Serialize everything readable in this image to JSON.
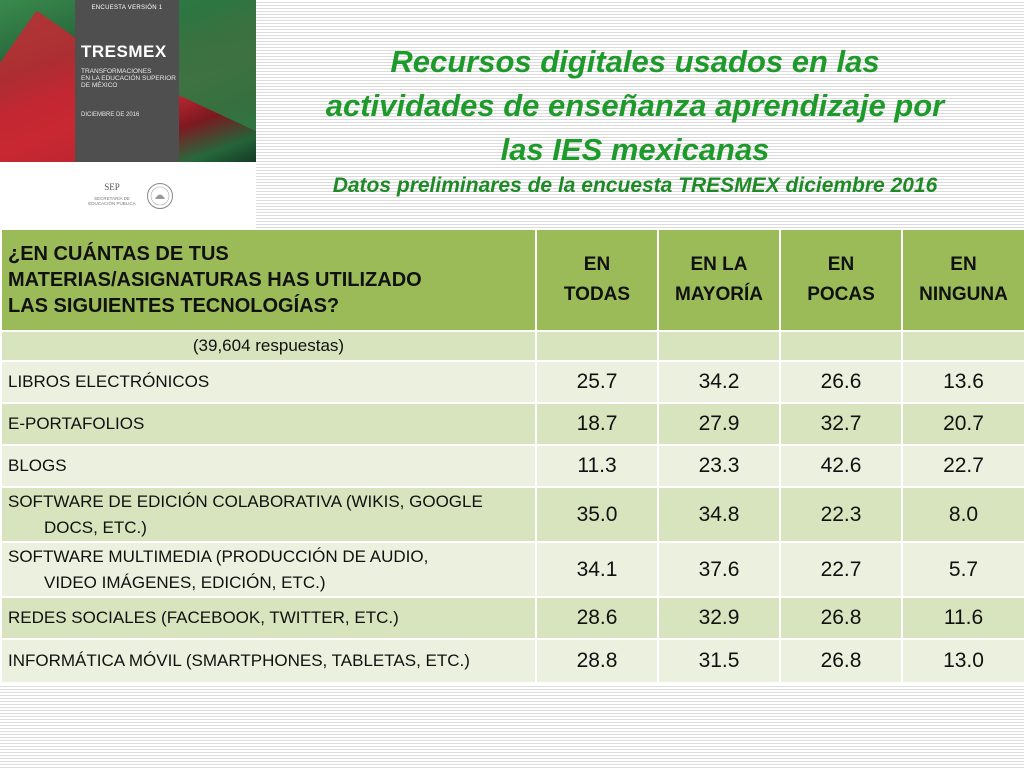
{
  "cover": {
    "version": "ENCUESTA VERSIÓN 1",
    "logo": "TRESMEX",
    "subtitle_lines": [
      "TRANSFORMACIONES",
      "EN LA EDUCACIÓN SUPERIOR",
      "DE MÉXICO"
    ],
    "date": "DICIEMBRE DE 2016",
    "sep_logo": "SEP",
    "sep_small_lines": [
      "SECRETARÍA DE",
      "EDUCACIÓN PÚBLICA"
    ],
    "seal_icon": "mexican-seal-icon"
  },
  "title_lines": [
    "Recursos digitales usados en las",
    "actividades de enseñanza aprendizaje por",
    "las IES mexicanas"
  ],
  "subtitle": "Datos preliminares de la encuesta TRESMEX diciembre 2016",
  "colors": {
    "title": "#1d9a2a",
    "header_bg": "#9bbb59",
    "row_light": "#ebf1de",
    "row_mid": "#d7e4bd"
  },
  "table": {
    "question_lines": [
      "¿EN CUÁNTAS DE TUS",
      "MATERIAS/ASIGNATURAS HAS UTILIZADO",
      "LAS SIGUIENTES TECNOLOGÍAS?"
    ],
    "columns": [
      {
        "lines": [
          "EN",
          "TODAS"
        ]
      },
      {
        "lines": [
          "EN LA",
          "MAYORÍA"
        ]
      },
      {
        "lines": [
          "EN",
          "POCAS"
        ]
      },
      {
        "lines": [
          "EN",
          "NINGUNA"
        ]
      }
    ],
    "sample_note": "(39,604 respuestas)",
    "rows": [
      {
        "lines": [
          "LIBROS ELECTRÓNICOS"
        ],
        "values": [
          "25.7",
          "34.2",
          "26.6",
          "13.6"
        ]
      },
      {
        "lines": [
          "E-PORTAFOLIOS"
        ],
        "values": [
          "18.7",
          "27.9",
          "32.7",
          "20.7"
        ]
      },
      {
        "lines": [
          "BLOGS"
        ],
        "values": [
          "11.3",
          "23.3",
          "42.6",
          "22.7"
        ]
      },
      {
        "lines": [
          "SOFTWARE DE EDICIÓN COLABORATIVA (WIKIS, GOOGLE",
          "DOCS, ETC.)"
        ],
        "values": [
          "35.0",
          "34.8",
          "22.3",
          "8.0"
        ]
      },
      {
        "lines": [
          "SOFTWARE MULTIMEDIA (PRODUCCIÓN DE AUDIO,",
          "VIDEO IMÁGENES, EDICIÓN, ETC.)"
        ],
        "values": [
          "34.1",
          "37.6",
          "22.7",
          "5.7"
        ]
      },
      {
        "lines": [
          "REDES SOCIALES (FACEBOOK, TWITTER, ETC.)"
        ],
        "values": [
          "28.6",
          "32.9",
          "26.8",
          "11.6"
        ]
      },
      {
        "lines": [
          "INFORMÁTICA MÓVIL (SMARTPHONES, TABLETAS, ETC.)"
        ],
        "values": [
          "28.8",
          "31.5",
          "26.8",
          "13.0"
        ]
      }
    ]
  }
}
